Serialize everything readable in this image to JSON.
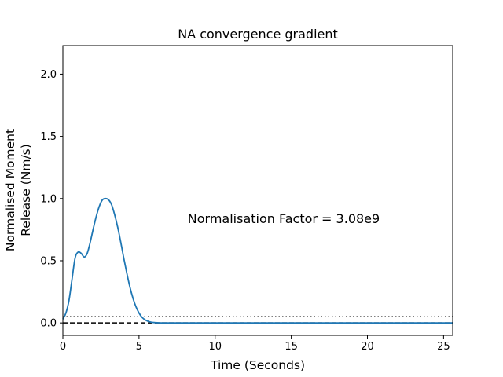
{
  "chart_data": {
    "type": "line",
    "title": "NA convergence gradient",
    "xlabel": "Time (Seconds)",
    "ylabel_lines": [
      "Normalised Moment",
      "Release (Nm/s)"
    ],
    "xlim": [
      0,
      25.6
    ],
    "ylim": [
      -0.1,
      2.23
    ],
    "xticks": [
      0,
      5,
      10,
      15,
      20,
      25
    ],
    "xtick_labels": [
      "0",
      "5",
      "10",
      "15",
      "20",
      "25"
    ],
    "yticks": [
      0.0,
      0.5,
      1.0,
      1.5,
      2.0
    ],
    "ytick_labels": [
      "0.0",
      "0.5",
      "1.0",
      "1.5",
      "2.0"
    ],
    "grid": false,
    "annotation": "Normalisation Factor = 3.08e9",
    "reference_lines": [
      {
        "y": 0.05,
        "style": "dotted",
        "color": "#000000"
      },
      {
        "y": 0.0,
        "style": "dashed",
        "color": "#000000"
      }
    ],
    "series": [
      {
        "color": "#1f77b4",
        "x": [
          0,
          0.2,
          0.4,
          0.6,
          0.8,
          1.0,
          1.2,
          1.4,
          1.6,
          1.8,
          2.0,
          2.2,
          2.4,
          2.6,
          2.8,
          3.0,
          3.2,
          3.4,
          3.6,
          3.8,
          4.0,
          4.2,
          4.4,
          4.6,
          4.8,
          5.0,
          5.2,
          5.4,
          5.6,
          5.8,
          6.0,
          6.3,
          6.6,
          7.0,
          8.0,
          10,
          15,
          20,
          25.6
        ],
        "y": [
          0.03,
          0.08,
          0.18,
          0.35,
          0.52,
          0.57,
          0.56,
          0.53,
          0.56,
          0.65,
          0.76,
          0.86,
          0.94,
          0.99,
          1.0,
          0.99,
          0.95,
          0.87,
          0.77,
          0.65,
          0.52,
          0.4,
          0.29,
          0.2,
          0.13,
          0.08,
          0.045,
          0.025,
          0.013,
          0.006,
          0.003,
          0.001,
          0.0,
          0.0,
          0.0,
          0.0,
          0.0,
          0.0,
          0.0
        ]
      }
    ]
  }
}
